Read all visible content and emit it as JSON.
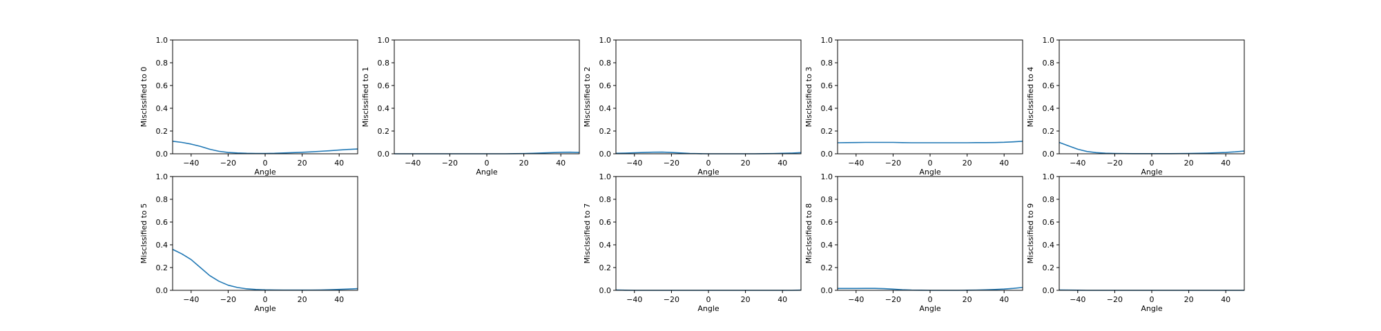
{
  "chart_data": [
    {
      "type": "line",
      "title": "",
      "xlabel": "Angle",
      "ylabel": "Misclssified to 0",
      "xlim": [
        -50,
        50
      ],
      "ylim": [
        0,
        1
      ],
      "xticks": [
        "−40",
        "−20",
        "0",
        "20",
        "40"
      ],
      "yticks": [
        "0.0",
        "0.2",
        "0.4",
        "0.6",
        "0.8",
        "1.0"
      ],
      "x": [
        -50,
        -45,
        -40,
        -35,
        -30,
        -25,
        -20,
        -15,
        -10,
        -5,
        0,
        5,
        10,
        15,
        20,
        25,
        30,
        35,
        40,
        45,
        50
      ],
      "values": [
        0.11,
        0.1,
        0.085,
        0.065,
        0.04,
        0.022,
        0.012,
        0.007,
        0.004,
        0.003,
        0.003,
        0.004,
        0.007,
        0.01,
        0.013,
        0.017,
        0.022,
        0.027,
        0.033,
        0.038,
        0.042
      ]
    },
    {
      "type": "line",
      "title": "",
      "xlabel": "Angle",
      "ylabel": "Misclssified to 1",
      "xlim": [
        -50,
        50
      ],
      "ylim": [
        0,
        1
      ],
      "xticks": [
        "−40",
        "−20",
        "0",
        "20",
        "40"
      ],
      "yticks": [
        "0.0",
        "0.2",
        "0.4",
        "0.6",
        "0.8",
        "1.0"
      ],
      "x": [
        -50,
        -45,
        -40,
        -35,
        -30,
        -25,
        -20,
        -15,
        -10,
        -5,
        0,
        5,
        10,
        15,
        20,
        25,
        30,
        35,
        40,
        45,
        50
      ],
      "values": [
        0.0,
        0.0,
        0.0,
        0.0,
        0.0,
        0.0,
        0.0,
        0.0,
        0.0,
        0.0,
        0.0,
        0.0,
        0.0,
        0.001,
        0.002,
        0.004,
        0.007,
        0.01,
        0.013,
        0.014,
        0.012
      ]
    },
    {
      "type": "line",
      "title": "",
      "xlabel": "Angle",
      "ylabel": "Misclssified to 2",
      "xlim": [
        -50,
        50
      ],
      "ylim": [
        0,
        1
      ],
      "xticks": [
        "−40",
        "−20",
        "0",
        "20",
        "40"
      ],
      "yticks": [
        "0.0",
        "0.2",
        "0.4",
        "0.6",
        "0.8",
        "1.0"
      ],
      "x": [
        -50,
        -45,
        -40,
        -35,
        -30,
        -25,
        -20,
        -15,
        -10,
        -5,
        0,
        5,
        10,
        15,
        20,
        25,
        30,
        35,
        40,
        45,
        50
      ],
      "values": [
        0.004,
        0.006,
        0.009,
        0.012,
        0.014,
        0.015,
        0.012,
        0.007,
        0.003,
        0.001,
        0.0,
        0.0,
        0.0,
        0.0,
        0.0,
        0.0,
        0.001,
        0.002,
        0.004,
        0.006,
        0.01
      ]
    },
    {
      "type": "line",
      "title": "",
      "xlabel": "Angle",
      "ylabel": "Misclssified to 3",
      "xlim": [
        -50,
        50
      ],
      "ylim": [
        0,
        1
      ],
      "xticks": [
        "−40",
        "−20",
        "0",
        "20",
        "40"
      ],
      "yticks": [
        "0.0",
        "0.2",
        "0.4",
        "0.6",
        "0.8",
        "1.0"
      ],
      "x": [
        -50,
        -45,
        -40,
        -35,
        -30,
        -25,
        -20,
        -15,
        -10,
        -5,
        0,
        5,
        10,
        15,
        20,
        25,
        30,
        35,
        40,
        45,
        50
      ],
      "values": [
        0.097,
        0.098,
        0.099,
        0.1,
        0.1,
        0.1,
        0.1,
        0.098,
        0.097,
        0.097,
        0.097,
        0.097,
        0.097,
        0.097,
        0.097,
        0.098,
        0.098,
        0.099,
        0.101,
        0.105,
        0.11
      ]
    },
    {
      "type": "line",
      "title": "",
      "xlabel": "Angle",
      "ylabel": "Misclssified to 4",
      "xlim": [
        -50,
        50
      ],
      "ylim": [
        0,
        1
      ],
      "xticks": [
        "−40",
        "−20",
        "0",
        "20",
        "40"
      ],
      "yticks": [
        "0.0",
        "0.2",
        "0.4",
        "0.6",
        "0.8",
        "1.0"
      ],
      "x": [
        -50,
        -45,
        -40,
        -35,
        -30,
        -25,
        -20,
        -15,
        -10,
        -5,
        0,
        5,
        10,
        15,
        20,
        25,
        30,
        35,
        40,
        45,
        50
      ],
      "values": [
        0.1,
        0.07,
        0.04,
        0.02,
        0.01,
        0.005,
        0.003,
        0.002,
        0.001,
        0.001,
        0.001,
        0.001,
        0.001,
        0.002,
        0.003,
        0.004,
        0.006,
        0.009,
        0.012,
        0.017,
        0.024
      ]
    },
    {
      "type": "line",
      "title": "",
      "xlabel": "Angle",
      "ylabel": "Misclssified to 5",
      "xlim": [
        -50,
        50
      ],
      "ylim": [
        0,
        1
      ],
      "xticks": [
        "−40",
        "−20",
        "0",
        "20",
        "40"
      ],
      "yticks": [
        "0.0",
        "0.2",
        "0.4",
        "0.6",
        "0.8",
        "1.0"
      ],
      "x": [
        -50,
        -45,
        -40,
        -35,
        -30,
        -25,
        -20,
        -15,
        -10,
        -5,
        0,
        5,
        10,
        15,
        20,
        25,
        30,
        35,
        40,
        45,
        50
      ],
      "values": [
        0.36,
        0.32,
        0.27,
        0.2,
        0.13,
        0.08,
        0.045,
        0.025,
        0.013,
        0.007,
        0.004,
        0.003,
        0.002,
        0.002,
        0.002,
        0.002,
        0.003,
        0.005,
        0.008,
        0.011,
        0.015
      ]
    },
    null,
    {
      "type": "line",
      "title": "",
      "xlabel": "Angle",
      "ylabel": "Misclssified to 7",
      "xlim": [
        -50,
        50
      ],
      "ylim": [
        0,
        1
      ],
      "xticks": [
        "−40",
        "−20",
        "0",
        "20",
        "40"
      ],
      "yticks": [
        "0.0",
        "0.2",
        "0.4",
        "0.6",
        "0.8",
        "1.0"
      ],
      "x": [
        -50,
        -45,
        -40,
        -35,
        -30,
        -25,
        -20,
        -15,
        -10,
        -5,
        0,
        5,
        10,
        15,
        20,
        25,
        30,
        35,
        40,
        45,
        50
      ],
      "values": [
        0.003,
        0.001,
        0.0,
        0.0,
        0.0,
        0.0,
        0.0,
        0.0,
        0.0,
        0.0,
        0.0,
        0.0,
        0.0,
        0.0,
        0.0,
        0.0,
        0.0,
        0.0,
        0.0,
        0.0,
        0.002
      ]
    },
    {
      "type": "line",
      "title": "",
      "xlabel": "Angle",
      "ylabel": "Misclssified to 8",
      "xlim": [
        -50,
        50
      ],
      "ylim": [
        0,
        1
      ],
      "xticks": [
        "−40",
        "−20",
        "0",
        "20",
        "40"
      ],
      "yticks": [
        "0.0",
        "0.2",
        "0.4",
        "0.6",
        "0.8",
        "1.0"
      ],
      "x": [
        -50,
        -45,
        -40,
        -35,
        -30,
        -25,
        -20,
        -15,
        -10,
        -5,
        0,
        5,
        10,
        15,
        20,
        25,
        30,
        35,
        40,
        45,
        50
      ],
      "values": [
        0.016,
        0.016,
        0.016,
        0.017,
        0.017,
        0.015,
        0.01,
        0.005,
        0.002,
        0.001,
        0.0,
        0.0,
        0.0,
        0.0,
        0.001,
        0.002,
        0.004,
        0.007,
        0.011,
        0.017,
        0.025
      ]
    },
    {
      "type": "line",
      "title": "",
      "xlabel": "Angle",
      "ylabel": "Misclssified to 9",
      "xlim": [
        -50,
        50
      ],
      "ylim": [
        0,
        1
      ],
      "xticks": [
        "−40",
        "−20",
        "0",
        "20",
        "40"
      ],
      "yticks": [
        "0.0",
        "0.2",
        "0.4",
        "0.6",
        "0.8",
        "1.0"
      ],
      "x": [
        -50,
        -45,
        -40,
        -35,
        -30,
        -25,
        -20,
        -15,
        -10,
        -5,
        0,
        5,
        10,
        15,
        20,
        25,
        30,
        35,
        40,
        45,
        50
      ],
      "values": [
        0.003,
        0.002,
        0.001,
        0.0,
        0.0,
        0.0,
        0.0,
        0.0,
        0.0,
        0.0,
        0.0,
        0.0,
        0.0,
        0.0,
        0.0,
        0.0,
        0.0,
        0.0,
        0.0,
        0.0,
        0.0
      ]
    }
  ],
  "colors": {
    "line": "#1f77b4",
    "axes": "#000000",
    "background": "#ffffff"
  }
}
